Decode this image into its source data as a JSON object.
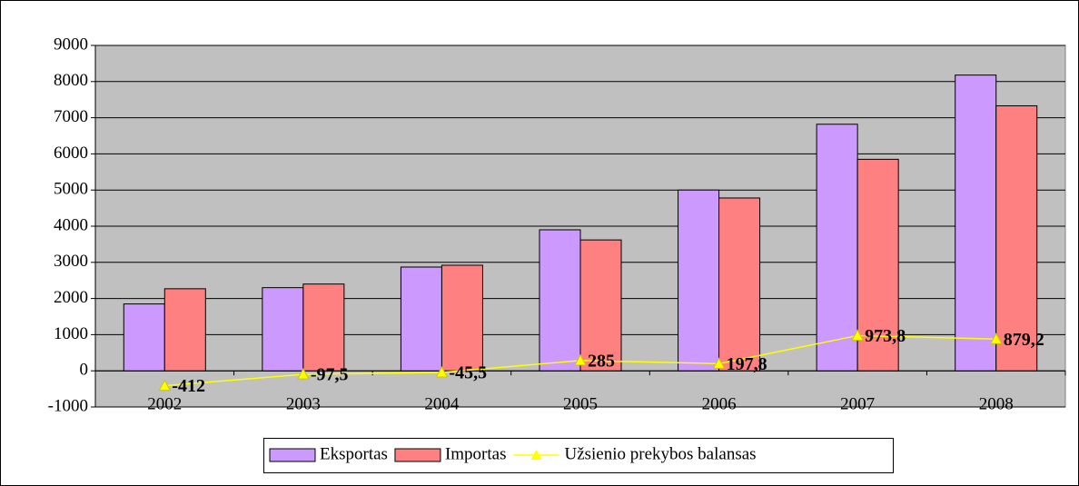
{
  "chart_data": {
    "type": "bar",
    "categories": [
      "2002",
      "2003",
      "2004",
      "2005",
      "2006",
      "2007",
      "2008"
    ],
    "series": [
      {
        "name": "Eksportas",
        "type": "bar",
        "color": "#cc99ff",
        "values": [
          1850,
          2300,
          2870,
          3900,
          5000,
          6820,
          8180
        ]
      },
      {
        "name": "Importas",
        "type": "bar",
        "color": "#ff8080",
        "values": [
          2270,
          2400,
          2920,
          3620,
          4780,
          5850,
          7330
        ]
      },
      {
        "name": "Užsienio prekybos balansas",
        "type": "line",
        "color": "#ffff00",
        "values": [
          -412,
          -97.5,
          -45.5,
          285,
          197.8,
          973.8,
          879.2
        ],
        "value_labels": [
          "-412",
          "-97,5",
          "-45,5",
          "285",
          "197,8",
          "973,8",
          "879,2"
        ]
      }
    ],
    "ylim": [
      -1000,
      9000
    ],
    "yticks": [
      -1000,
      0,
      1000,
      2000,
      3000,
      4000,
      5000,
      6000,
      7000,
      8000,
      9000
    ],
    "grid": true,
    "legend": "bottom"
  }
}
